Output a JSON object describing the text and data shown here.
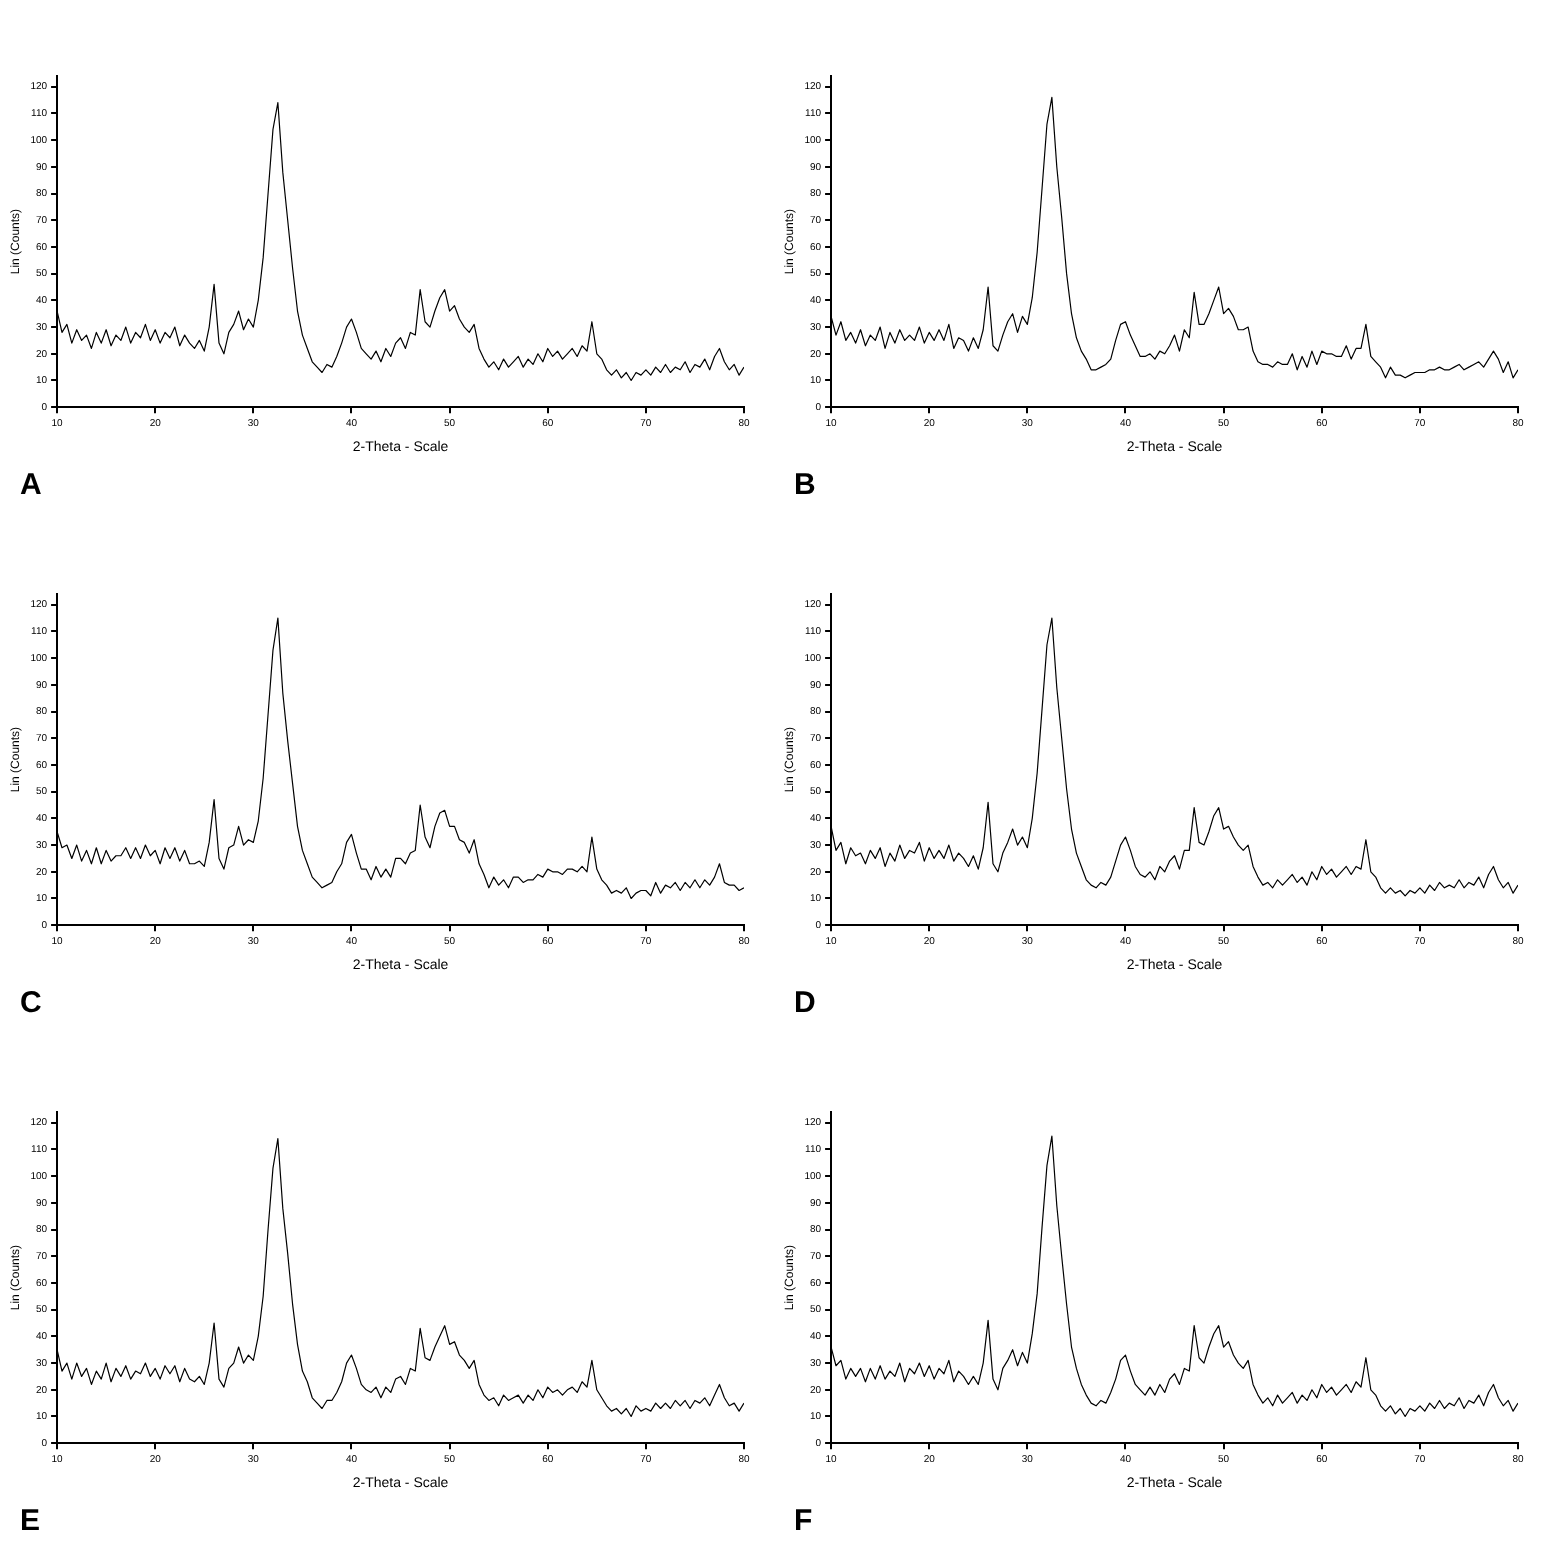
{
  "chart_data": [
    {
      "type": "line",
      "xlabel": "2-Theta - Scale",
      "ylabel": "Lin (Counts)",
      "annotations": [
        "A"
      ],
      "xlim": [
        10,
        80
      ],
      "ylim": [
        0,
        124
      ],
      "xticks": [
        10,
        20,
        30,
        40,
        50,
        60,
        70,
        80
      ],
      "yticks": [
        0,
        10,
        20,
        30,
        40,
        50,
        60,
        70,
        80,
        90,
        100,
        110,
        120
      ],
      "grid": false,
      "legend": false,
      "marker": "none",
      "x": [
        10,
        10.5,
        11,
        11.5,
        12,
        12.5,
        13,
        13.5,
        14,
        14.5,
        15,
        15.5,
        16,
        16.5,
        17,
        17.5,
        18,
        18.5,
        19,
        19.5,
        20,
        20.5,
        21,
        21.5,
        22,
        22.5,
        23,
        23.5,
        24,
        24.5,
        25,
        25.5,
        26,
        26.5,
        27,
        27.5,
        28,
        28.5,
        29,
        29.5,
        30,
        30.5,
        31,
        31.5,
        32,
        32.5,
        33,
        33.5,
        34,
        34.5,
        35,
        35.5,
        36,
        36.5,
        37,
        37.5,
        38,
        38.5,
        39,
        39.5,
        40,
        40.5,
        41,
        41.5,
        42,
        42.5,
        43,
        43.5,
        44,
        44.5,
        45,
        45.5,
        46,
        46.5,
        47,
        47.5,
        48,
        48.5,
        49,
        49.5,
        50,
        50.5,
        51,
        51.5,
        52,
        52.5,
        53,
        53.5,
        54,
        54.5,
        55,
        55.5,
        56,
        56.5,
        57,
        57.5,
        58,
        58.5,
        59,
        59.5,
        60,
        60.5,
        61,
        61.5,
        62,
        62.5,
        63,
        63.5,
        64,
        64.5,
        65,
        65.5,
        66,
        66.5,
        67,
        67.5,
        68,
        68.5,
        69,
        69.5,
        70,
        70.5,
        71,
        71.5,
        72,
        72.5,
        73,
        73.5,
        74,
        74.5,
        75,
        75.5,
        76,
        76.5,
        77,
        77.5,
        78,
        78.5,
        79,
        79.5,
        80
      ],
      "series": [
        {
          "color": "#000000",
          "values": [
            36,
            28,
            31,
            24,
            29,
            25,
            27,
            22,
            28,
            24,
            29,
            23,
            27,
            25,
            30,
            24,
            28,
            26,
            31,
            25,
            29,
            24,
            28,
            26,
            30,
            23,
            27,
            24,
            22,
            25,
            21,
            30,
            46,
            24,
            20,
            28,
            31,
            36,
            29,
            33,
            30,
            40,
            56,
            80,
            104,
            114,
            88,
            70,
            52,
            36,
            27,
            22,
            17,
            15,
            13,
            16,
            15,
            19,
            24,
            30,
            33,
            28,
            22,
            20,
            18,
            21,
            17,
            22,
            19,
            24,
            26,
            22,
            28,
            27,
            44,
            32,
            30,
            36,
            41,
            44,
            36,
            38,
            33,
            30,
            28,
            31,
            22,
            18,
            15,
            17,
            14,
            18,
            15,
            17,
            19,
            15,
            18,
            16,
            20,
            17,
            22,
            19,
            21,
            18,
            20,
            22,
            19,
            23,
            21,
            32,
            20,
            18,
            14,
            12,
            14,
            11,
            13,
            10,
            13,
            12,
            14,
            12,
            15,
            13,
            16,
            13,
            15,
            14,
            17,
            13,
            16,
            15,
            18,
            14,
            19,
            22,
            17,
            14,
            16,
            12,
            15
          ]
        }
      ]
    },
    {
      "type": "line",
      "xlabel": "2-Theta - Scale",
      "ylabel": "Lin (Counts)",
      "annotations": [
        "B"
      ],
      "xlim": [
        10,
        80
      ],
      "ylim": [
        0,
        124
      ],
      "xticks": [
        10,
        20,
        30,
        40,
        50,
        60,
        70,
        80
      ],
      "yticks": [
        0,
        10,
        20,
        30,
        40,
        50,
        60,
        70,
        80,
        90,
        100,
        110,
        120
      ],
      "grid": false,
      "legend": false,
      "marker": "none",
      "x": [
        10,
        10.5,
        11,
        11.5,
        12,
        12.5,
        13,
        13.5,
        14,
        14.5,
        15,
        15.5,
        16,
        16.5,
        17,
        17.5,
        18,
        18.5,
        19,
        19.5,
        20,
        20.5,
        21,
        21.5,
        22,
        22.5,
        23,
        23.5,
        24,
        24.5,
        25,
        25.5,
        26,
        26.5,
        27,
        27.5,
        28,
        28.5,
        29,
        29.5,
        30,
        30.5,
        31,
        31.5,
        32,
        32.5,
        33,
        33.5,
        34,
        34.5,
        35,
        35.5,
        36,
        36.5,
        37,
        37.5,
        38,
        38.5,
        39,
        39.5,
        40,
        40.5,
        41,
        41.5,
        42,
        42.5,
        43,
        43.5,
        44,
        44.5,
        45,
        45.5,
        46,
        46.5,
        47,
        47.5,
        48,
        48.5,
        49,
        49.5,
        50,
        50.5,
        51,
        51.5,
        52,
        52.5,
        53,
        53.5,
        54,
        54.5,
        55,
        55.5,
        56,
        56.5,
        57,
        57.5,
        58,
        58.5,
        59,
        59.5,
        60,
        60.5,
        61,
        61.5,
        62,
        62.5,
        63,
        63.5,
        64,
        64.5,
        65,
        65.5,
        66,
        66.5,
        67,
        67.5,
        68,
        68.5,
        69,
        69.5,
        70,
        70.5,
        71,
        71.5,
        72,
        72.5,
        73,
        73.5,
        74,
        74.5,
        75,
        75.5,
        76,
        76.5,
        77,
        77.5,
        78,
        78.5,
        79,
        79.5,
        80
      ],
      "series": [
        {
          "color": "#000000",
          "values": [
            34,
            27,
            32,
            25,
            28,
            24,
            29,
            23,
            27,
            25,
            30,
            22,
            28,
            24,
            29,
            25,
            27,
            25,
            30,
            24,
            28,
            25,
            29,
            25,
            31,
            22,
            26,
            25,
            21,
            26,
            22,
            29,
            45,
            23,
            21,
            27,
            32,
            35,
            28,
            34,
            31,
            41,
            58,
            82,
            106,
            116,
            90,
            71,
            50,
            35,
            26,
            21,
            18,
            14,
            14,
            15,
            16,
            18,
            25,
            31,
            32,
            27,
            23,
            19,
            19,
            20,
            18,
            21,
            20,
            23,
            27,
            21,
            29,
            26,
            43,
            31,
            31,
            35,
            40,
            45,
            35,
            37,
            34,
            29,
            29,
            30,
            21,
            17,
            16,
            16,
            15,
            17,
            16,
            16,
            20,
            14,
            19,
            15,
            21,
            16,
            21,
            20,
            20,
            19,
            19,
            23,
            18,
            22,
            22,
            31,
            19,
            17,
            15,
            11,
            15,
            12,
            12,
            11,
            12,
            13,
            13,
            13,
            14,
            14,
            15,
            14,
            14,
            15,
            16,
            14,
            15,
            16,
            17,
            15,
            18,
            21,
            18,
            13,
            17,
            11,
            14
          ]
        }
      ]
    },
    {
      "type": "line",
      "xlabel": "2-Theta - Scale",
      "ylabel": "Lin (Counts)",
      "annotations": [
        "C"
      ],
      "xlim": [
        10,
        80
      ],
      "ylim": [
        0,
        124
      ],
      "xticks": [
        10,
        20,
        30,
        40,
        50,
        60,
        70,
        80
      ],
      "yticks": [
        0,
        10,
        20,
        30,
        40,
        50,
        60,
        70,
        80,
        90,
        100,
        110,
        120
      ],
      "grid": false,
      "legend": false,
      "marker": "none",
      "x": [
        10,
        10.5,
        11,
        11.5,
        12,
        12.5,
        13,
        13.5,
        14,
        14.5,
        15,
        15.5,
        16,
        16.5,
        17,
        17.5,
        18,
        18.5,
        19,
        19.5,
        20,
        20.5,
        21,
        21.5,
        22,
        22.5,
        23,
        23.5,
        24,
        24.5,
        25,
        25.5,
        26,
        26.5,
        27,
        27.5,
        28,
        28.5,
        29,
        29.5,
        30,
        30.5,
        31,
        31.5,
        32,
        32.5,
        33,
        33.5,
        34,
        34.5,
        35,
        35.5,
        36,
        36.5,
        37,
        37.5,
        38,
        38.5,
        39,
        39.5,
        40,
        40.5,
        41,
        41.5,
        42,
        42.5,
        43,
        43.5,
        44,
        44.5,
        45,
        45.5,
        46,
        46.5,
        47,
        47.5,
        48,
        48.5,
        49,
        49.5,
        50,
        50.5,
        51,
        51.5,
        52,
        52.5,
        53,
        53.5,
        54,
        54.5,
        55,
        55.5,
        56,
        56.5,
        57,
        57.5,
        58,
        58.5,
        59,
        59.5,
        60,
        60.5,
        61,
        61.5,
        62,
        62.5,
        63,
        63.5,
        64,
        64.5,
        65,
        65.5,
        66,
        66.5,
        67,
        67.5,
        68,
        68.5,
        69,
        69.5,
        70,
        70.5,
        71,
        71.5,
        72,
        72.5,
        73,
        73.5,
        74,
        74.5,
        75,
        75.5,
        76,
        76.5,
        77,
        77.5,
        78,
        78.5,
        79,
        79.5,
        80
      ],
      "series": [
        {
          "color": "#000000",
          "values": [
            35,
            29,
            30,
            25,
            30,
            24,
            28,
            23,
            29,
            23,
            28,
            24,
            26,
            26,
            29,
            25,
            29,
            25,
            30,
            26,
            28,
            23,
            29,
            25,
            29,
            24,
            28,
            23,
            23,
            24,
            22,
            31,
            47,
            25,
            21,
            29,
            30,
            37,
            30,
            32,
            31,
            39,
            55,
            79,
            103,
            115,
            87,
            69,
            53,
            37,
            28,
            23,
            18,
            16,
            14,
            15,
            16,
            20,
            23,
            31,
            34,
            27,
            21,
            21,
            17,
            22,
            18,
            21,
            18,
            25,
            25,
            23,
            27,
            28,
            45,
            33,
            29,
            37,
            42,
            43,
            37,
            37,
            32,
            31,
            27,
            32,
            23,
            19,
            14,
            18,
            15,
            17,
            14,
            18,
            18,
            16,
            17,
            17,
            19,
            18,
            21,
            20,
            20,
            19,
            21,
            21,
            20,
            22,
            20,
            33,
            21,
            17,
            15,
            12,
            13,
            12,
            14,
            10,
            12,
            13,
            13,
            11,
            16,
            12,
            15,
            14,
            16,
            13,
            16,
            14,
            17,
            14,
            17,
            15,
            18,
            23,
            16,
            15,
            15,
            13,
            14
          ]
        }
      ]
    },
    {
      "type": "line",
      "xlabel": "2-Theta - Scale",
      "ylabel": "Lin (Counts)",
      "annotations": [
        "D"
      ],
      "xlim": [
        10,
        80
      ],
      "ylim": [
        0,
        124
      ],
      "xticks": [
        10,
        20,
        30,
        40,
        50,
        60,
        70,
        80
      ],
      "yticks": [
        0,
        10,
        20,
        30,
        40,
        50,
        60,
        70,
        80,
        90,
        100,
        110,
        120
      ],
      "grid": false,
      "legend": false,
      "marker": "none",
      "x": [
        10,
        10.5,
        11,
        11.5,
        12,
        12.5,
        13,
        13.5,
        14,
        14.5,
        15,
        15.5,
        16,
        16.5,
        17,
        17.5,
        18,
        18.5,
        19,
        19.5,
        20,
        20.5,
        21,
        21.5,
        22,
        22.5,
        23,
        23.5,
        24,
        24.5,
        25,
        25.5,
        26,
        26.5,
        27,
        27.5,
        28,
        28.5,
        29,
        29.5,
        30,
        30.5,
        31,
        31.5,
        32,
        32.5,
        33,
        33.5,
        34,
        34.5,
        35,
        35.5,
        36,
        36.5,
        37,
        37.5,
        38,
        38.5,
        39,
        39.5,
        40,
        40.5,
        41,
        41.5,
        42,
        42.5,
        43,
        43.5,
        44,
        44.5,
        45,
        45.5,
        46,
        46.5,
        47,
        47.5,
        48,
        48.5,
        49,
        49.5,
        50,
        50.5,
        51,
        51.5,
        52,
        52.5,
        53,
        53.5,
        54,
        54.5,
        55,
        55.5,
        56,
        56.5,
        57,
        57.5,
        58,
        58.5,
        59,
        59.5,
        60,
        60.5,
        61,
        61.5,
        62,
        62.5,
        63,
        63.5,
        64,
        64.5,
        65,
        65.5,
        66,
        66.5,
        67,
        67.5,
        68,
        68.5,
        69,
        69.5,
        70,
        70.5,
        71,
        71.5,
        72,
        72.5,
        73,
        73.5,
        74,
        74.5,
        75,
        75.5,
        76,
        76.5,
        77,
        77.5,
        78,
        78.5,
        79,
        79.5,
        80
      ],
      "series": [
        {
          "color": "#000000",
          "values": [
            37,
            28,
            31,
            23,
            29,
            26,
            27,
            23,
            28,
            25,
            29,
            22,
            27,
            24,
            30,
            25,
            28,
            27,
            31,
            24,
            29,
            25,
            28,
            25,
            30,
            24,
            27,
            25,
            22,
            26,
            21,
            29,
            46,
            23,
            20,
            27,
            31,
            36,
            30,
            33,
            29,
            40,
            57,
            81,
            105,
            115,
            89,
            70,
            51,
            36,
            27,
            22,
            17,
            15,
            14,
            16,
            15,
            18,
            24,
            30,
            33,
            28,
            22,
            19,
            18,
            20,
            17,
            22,
            20,
            24,
            26,
            21,
            28,
            28,
            44,
            31,
            30,
            35,
            41,
            44,
            36,
            37,
            33,
            30,
            28,
            30,
            22,
            18,
            15,
            16,
            14,
            17,
            15,
            17,
            19,
            16,
            18,
            15,
            20,
            17,
            22,
            19,
            21,
            18,
            20,
            22,
            19,
            22,
            21,
            32,
            20,
            18,
            14,
            12,
            14,
            12,
            13,
            11,
            13,
            12,
            14,
            12,
            15,
            13,
            16,
            14,
            15,
            14,
            17,
            14,
            16,
            15,
            18,
            14,
            19,
            22,
            17,
            14,
            16,
            12,
            15
          ]
        }
      ]
    },
    {
      "type": "line",
      "xlabel": "2-Theta - Scale",
      "ylabel": "Lin (Counts)",
      "annotations": [
        "E"
      ],
      "xlim": [
        10,
        80
      ],
      "ylim": [
        0,
        124
      ],
      "xticks": [
        10,
        20,
        30,
        40,
        50,
        60,
        70,
        80
      ],
      "yticks": [
        0,
        10,
        20,
        30,
        40,
        50,
        60,
        70,
        80,
        90,
        100,
        110,
        120
      ],
      "grid": false,
      "legend": false,
      "marker": "none",
      "x": [
        10,
        10.5,
        11,
        11.5,
        12,
        12.5,
        13,
        13.5,
        14,
        14.5,
        15,
        15.5,
        16,
        16.5,
        17,
        17.5,
        18,
        18.5,
        19,
        19.5,
        20,
        20.5,
        21,
        21.5,
        22,
        22.5,
        23,
        23.5,
        24,
        24.5,
        25,
        25.5,
        26,
        26.5,
        27,
        27.5,
        28,
        28.5,
        29,
        29.5,
        30,
        30.5,
        31,
        31.5,
        32,
        32.5,
        33,
        33.5,
        34,
        34.5,
        35,
        35.5,
        36,
        36.5,
        37,
        37.5,
        38,
        38.5,
        39,
        39.5,
        40,
        40.5,
        41,
        41.5,
        42,
        42.5,
        43,
        43.5,
        44,
        44.5,
        45,
        45.5,
        46,
        46.5,
        47,
        47.5,
        48,
        48.5,
        49,
        49.5,
        50,
        50.5,
        51,
        51.5,
        52,
        52.5,
        53,
        53.5,
        54,
        54.5,
        55,
        55.5,
        56,
        56.5,
        57,
        57.5,
        58,
        58.5,
        59,
        59.5,
        60,
        60.5,
        61,
        61.5,
        62,
        62.5,
        63,
        63.5,
        64,
        64.5,
        65,
        65.5,
        66,
        66.5,
        67,
        67.5,
        68,
        68.5,
        69,
        69.5,
        70,
        70.5,
        71,
        71.5,
        72,
        72.5,
        73,
        73.5,
        74,
        74.5,
        75,
        75.5,
        76,
        76.5,
        77,
        77.5,
        78,
        78.5,
        79,
        79.5,
        80
      ],
      "series": [
        {
          "color": "#000000",
          "values": [
            35,
            27,
            30,
            24,
            30,
            25,
            28,
            22,
            27,
            24,
            30,
            23,
            28,
            25,
            29,
            24,
            27,
            26,
            30,
            25,
            28,
            24,
            29,
            26,
            29,
            23,
            28,
            24,
            23,
            25,
            22,
            30,
            45,
            24,
            21,
            28,
            30,
            36,
            30,
            33,
            31,
            40,
            55,
            80,
            103,
            114,
            88,
            71,
            52,
            37,
            27,
            23,
            17,
            15,
            13,
            16,
            16,
            19,
            23,
            30,
            33,
            28,
            22,
            20,
            19,
            21,
            17,
            21,
            19,
            24,
            25,
            22,
            28,
            27,
            43,
            32,
            31,
            36,
            40,
            44,
            37,
            38,
            33,
            31,
            28,
            31,
            22,
            18,
            16,
            17,
            14,
            18,
            16,
            17,
            18,
            15,
            18,
            16,
            20,
            17,
            21,
            19,
            20,
            18,
            20,
            21,
            19,
            23,
            21,
            31,
            20,
            17,
            14,
            12,
            13,
            11,
            13,
            10,
            14,
            12,
            13,
            12,
            15,
            13,
            15,
            13,
            16,
            14,
            16,
            13,
            16,
            15,
            17,
            14,
            18,
            22,
            17,
            14,
            15,
            12,
            15
          ]
        }
      ]
    },
    {
      "type": "line",
      "xlabel": "2-Theta - Scale",
      "ylabel": "Lin (Counts)",
      "annotations": [
        "F"
      ],
      "xlim": [
        10,
        80
      ],
      "ylim": [
        0,
        124
      ],
      "xticks": [
        10,
        20,
        30,
        40,
        50,
        60,
        70,
        80
      ],
      "yticks": [
        0,
        10,
        20,
        30,
        40,
        50,
        60,
        70,
        80,
        90,
        100,
        110,
        120
      ],
      "grid": false,
      "legend": false,
      "marker": "none",
      "x": [
        10,
        10.5,
        11,
        11.5,
        12,
        12.5,
        13,
        13.5,
        14,
        14.5,
        15,
        15.5,
        16,
        16.5,
        17,
        17.5,
        18,
        18.5,
        19,
        19.5,
        20,
        20.5,
        21,
        21.5,
        22,
        22.5,
        23,
        23.5,
        24,
        24.5,
        25,
        25.5,
        26,
        26.5,
        27,
        27.5,
        28,
        28.5,
        29,
        29.5,
        30,
        30.5,
        31,
        31.5,
        32,
        32.5,
        33,
        33.5,
        34,
        34.5,
        35,
        35.5,
        36,
        36.5,
        37,
        37.5,
        38,
        38.5,
        39,
        39.5,
        40,
        40.5,
        41,
        41.5,
        42,
        42.5,
        43,
        43.5,
        44,
        44.5,
        45,
        45.5,
        46,
        46.5,
        47,
        47.5,
        48,
        48.5,
        49,
        49.5,
        50,
        50.5,
        51,
        51.5,
        52,
        52.5,
        53,
        53.5,
        54,
        54.5,
        55,
        55.5,
        56,
        56.5,
        57,
        57.5,
        58,
        58.5,
        59,
        59.5,
        60,
        60.5,
        61,
        61.5,
        62,
        62.5,
        63,
        63.5,
        64,
        64.5,
        65,
        65.5,
        66,
        66.5,
        67,
        67.5,
        68,
        68.5,
        69,
        69.5,
        70,
        70.5,
        71,
        71.5,
        72,
        72.5,
        73,
        73.5,
        74,
        74.5,
        75,
        75.5,
        76,
        76.5,
        77,
        77.5,
        78,
        78.5,
        79,
        79.5,
        80
      ],
      "series": [
        {
          "color": "#000000",
          "values": [
            36,
            29,
            31,
            24,
            28,
            25,
            28,
            23,
            28,
            24,
            29,
            24,
            27,
            25,
            30,
            23,
            28,
            26,
            30,
            25,
            29,
            24,
            28,
            26,
            31,
            23,
            27,
            25,
            22,
            25,
            22,
            30,
            46,
            24,
            20,
            28,
            31,
            35,
            29,
            34,
            30,
            41,
            56,
            81,
            104,
            115,
            89,
            70,
            52,
            36,
            28,
            22,
            18,
            15,
            14,
            16,
            15,
            19,
            24,
            31,
            33,
            27,
            22,
            20,
            18,
            21,
            18,
            22,
            19,
            24,
            26,
            22,
            28,
            27,
            44,
            32,
            30,
            36,
            41,
            44,
            36,
            38,
            33,
            30,
            28,
            31,
            22,
            18,
            15,
            17,
            14,
            18,
            15,
            17,
            19,
            15,
            18,
            16,
            20,
            17,
            22,
            19,
            21,
            18,
            20,
            22,
            19,
            23,
            21,
            32,
            20,
            18,
            14,
            12,
            14,
            11,
            13,
            10,
            13,
            12,
            14,
            12,
            15,
            13,
            16,
            13,
            15,
            14,
            17,
            13,
            16,
            15,
            18,
            14,
            19,
            22,
            17,
            14,
            16,
            12,
            15
          ]
        }
      ]
    }
  ]
}
